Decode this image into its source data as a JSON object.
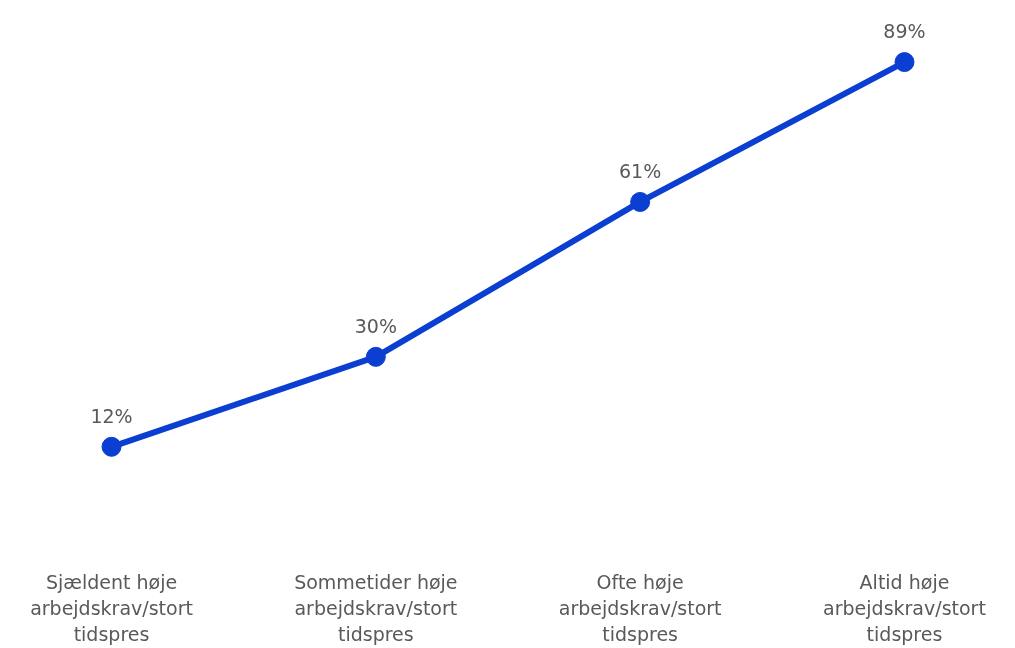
{
  "chart_data": {
    "type": "line",
    "categories": [
      "Sjældent høje arbejdskrav/stort tidspres",
      "Sommetider høje arbejdskrav/stort tidspres",
      "Ofte høje arbejdskrav/stort tidspres",
      "Altid høje arbejdskrav/stort tidspres"
    ],
    "series": [
      {
        "color": "#0a3fd1",
        "values": [
          12,
          30,
          61,
          89
        ],
        "value_labels": [
          "12%",
          "30%",
          "61%",
          "89%"
        ]
      }
    ],
    "tick_labels": "x",
    "grid": false,
    "marker": "circle",
    "line_style": "solid"
  }
}
